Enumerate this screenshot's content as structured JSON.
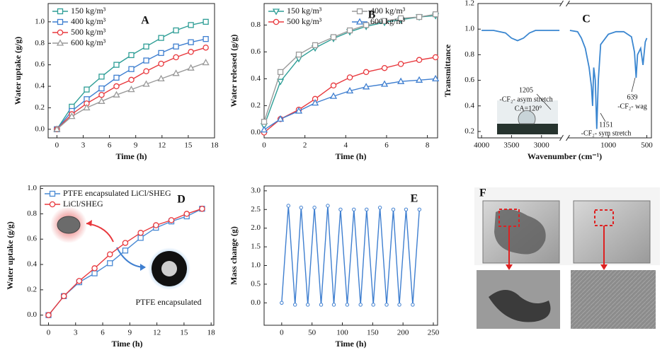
{
  "chart_data": [
    {
      "type": "line",
      "panel_label": "A",
      "x_label": "Time (h)",
      "y_label": "Water uptake (g/g)",
      "xlim": [
        -1,
        18
      ],
      "xticks": [
        0,
        3,
        6,
        9,
        12,
        15,
        18
      ],
      "ylim": [
        -0.08,
        1.17
      ],
      "yticks": [
        {
          "value": 0,
          "label": "0.0"
        },
        0.2,
        0.4,
        0.6,
        0.8,
        {
          "value": 1,
          "label": "1.0"
        }
      ],
      "legend": "upper left",
      "series": [
        {
          "name": "150 kg/m³",
          "color": "#2e9e96",
          "marker": "square",
          "x": [
            0,
            1.7,
            3.4,
            5.1,
            6.8,
            8.5,
            10.2,
            11.9,
            13.6,
            15.3,
            17
          ],
          "values": [
            0,
            0.21,
            0.37,
            0.49,
            0.6,
            0.69,
            0.77,
            0.85,
            0.92,
            0.97,
            1.0
          ]
        },
        {
          "name": "400 kg/m³",
          "color": "#3f7fd0",
          "marker": "square",
          "x": [
            0,
            1.7,
            3.4,
            5.1,
            6.8,
            8.5,
            10.2,
            11.9,
            13.6,
            15.3,
            17
          ],
          "values": [
            0,
            0.17,
            0.28,
            0.38,
            0.48,
            0.56,
            0.64,
            0.71,
            0.77,
            0.81,
            0.84
          ]
        },
        {
          "name": "500 kg/m³",
          "color": "#e8383d",
          "marker": "circle",
          "x": [
            0,
            1.7,
            3.4,
            5.1,
            6.8,
            8.5,
            10.2,
            11.9,
            13.6,
            15.3,
            17
          ],
          "values": [
            0,
            0.14,
            0.24,
            0.32,
            0.4,
            0.46,
            0.54,
            0.61,
            0.67,
            0.72,
            0.76
          ]
        },
        {
          "name": "600 kg/m³",
          "color": "#9a9a9a",
          "marker": "triangle",
          "x": [
            0,
            1.7,
            3.4,
            5.1,
            6.8,
            8.5,
            10.2,
            11.9,
            13.6,
            15.3,
            17
          ],
          "values": [
            0,
            0.12,
            0.2,
            0.26,
            0.32,
            0.37,
            0.42,
            0.47,
            0.52,
            0.57,
            0.62
          ]
        }
      ]
    },
    {
      "type": "line",
      "panel_label": "B",
      "x_label": "Time (h)",
      "y_label": "Water released (g/g)",
      "xlim": [
        0,
        8.5
      ],
      "xticks": [
        0,
        2,
        4,
        6,
        8
      ],
      "ylim": [
        -0.04,
        0.96
      ],
      "yticks": [
        {
          "value": 0,
          "label": "0.0"
        },
        0.2,
        0.4,
        0.6,
        0.8
      ],
      "legend": "upper left",
      "legend_columns": 2,
      "series": [
        {
          "name": "150 kg/m³",
          "color": "#2e9e96",
          "marker": "triangle-down",
          "x": [
            0,
            0.8,
            1.7,
            2.5,
            3.4,
            4.2,
            5.0,
            5.9,
            6.7,
            7.6,
            8.4
          ],
          "values": [
            0.05,
            0.38,
            0.55,
            0.63,
            0.7,
            0.75,
            0.79,
            0.82,
            0.84,
            0.86,
            0.87
          ]
        },
        {
          "name": "400 kg/m³",
          "color": "#9a9a9a",
          "marker": "square",
          "x": [
            0,
            0.8,
            1.7,
            2.5,
            3.4,
            4.2,
            5.0,
            5.9,
            6.7,
            7.6,
            8.4
          ],
          "values": [
            0.08,
            0.45,
            0.58,
            0.65,
            0.71,
            0.76,
            0.8,
            0.83,
            0.85,
            0.86,
            0.88
          ]
        },
        {
          "name": "500 kg/m³",
          "color": "#e8383d",
          "marker": "circle",
          "x": [
            0,
            0.8,
            1.7,
            2.5,
            3.4,
            4.2,
            5.0,
            5.9,
            6.7,
            7.6,
            8.4
          ],
          "values": [
            0,
            0.1,
            0.17,
            0.25,
            0.35,
            0.41,
            0.45,
            0.48,
            0.51,
            0.54,
            0.56
          ]
        },
        {
          "name": "600 kg/m³",
          "color": "#3f7fd0",
          "marker": "triangle",
          "x": [
            0,
            0.8,
            1.7,
            2.5,
            3.4,
            4.2,
            5.0,
            5.9,
            6.7,
            7.6,
            8.4
          ],
          "values": [
            0.02,
            0.1,
            0.16,
            0.22,
            0.27,
            0.31,
            0.34,
            0.36,
            0.38,
            0.39,
            0.4
          ]
        }
      ]
    },
    {
      "type": "line",
      "panel_label": "C",
      "x_label": "Wavenumber (cm⁻¹)",
      "y_label": "Transmittance",
      "xlim": [
        4060,
        440
      ],
      "xbreak": [
        2700,
        1500
      ],
      "xticks": [
        4000,
        3500,
        3000,
        1000,
        500
      ],
      "ylim": [
        0.15,
        1.2
      ],
      "yticks": [
        0.2,
        0.4,
        0.6,
        0.8,
        {
          "value": 1,
          "label": "1.0"
        },
        1.2
      ],
      "annotations": [
        "1205",
        "-CF₂- asym stretch",
        "1151",
        "-CF₂- sym stretch",
        "639",
        "-CF₂- wag",
        "CA=120°"
      ],
      "series": [
        {
          "color": "#3a86d0",
          "x": [
            4000,
            3800,
            3600,
            3500,
            3400,
            3300,
            3200,
            3100,
            2900,
            2700,
            2000,
            1500,
            1400,
            1350,
            1300,
            1250,
            1220,
            1205,
            1190,
            1170,
            1151,
            1130,
            1100,
            1000,
            900,
            800,
            700,
            660,
            639,
            620,
            580,
            550,
            520,
            500
          ],
          "values": [
            0.99,
            0.99,
            0.97,
            0.93,
            0.91,
            0.93,
            0.97,
            0.99,
            0.99,
            0.99,
            null,
            0.99,
            0.98,
            0.93,
            0.85,
            0.7,
            0.55,
            0.4,
            0.7,
            0.6,
            0.22,
            0.6,
            0.88,
            0.96,
            0.98,
            0.98,
            0.94,
            0.82,
            0.62,
            0.8,
            0.85,
            0.72,
            0.9,
            0.93
          ]
        }
      ]
    },
    {
      "type": "line",
      "panel_label": "D",
      "x_label": "Time (h)",
      "y_label": "Water uptake (g/g)",
      "xlim": [
        -0.9,
        18.3
      ],
      "xticks": [
        0,
        3,
        6,
        9,
        12,
        15,
        18
      ],
      "ylim": [
        -0.08,
        1.02
      ],
      "yticks": [
        {
          "value": 0,
          "label": "0.0"
        },
        0.2,
        0.4,
        0.6,
        0.8,
        {
          "value": 1,
          "label": "1.0"
        }
      ],
      "legend": "upper left",
      "annotations": [
        "PTFE encapsulated"
      ],
      "series": [
        {
          "name": "PTFE encapsulated LiCl/SHEG",
          "color": "#4a8ad4",
          "marker": "square",
          "x": [
            0,
            1.7,
            3.4,
            5.1,
            6.8,
            8.5,
            10.2,
            11.9,
            13.6,
            15.3,
            17
          ],
          "values": [
            0,
            0.15,
            0.26,
            0.33,
            0.41,
            0.51,
            0.61,
            0.69,
            0.74,
            0.78,
            0.84
          ]
        },
        {
          "name": "LiCl/SHEG",
          "color": "#e8383d",
          "marker": "circle",
          "x": [
            0,
            1.7,
            3.4,
            5.1,
            6.8,
            8.5,
            10.2,
            11.9,
            13.6,
            15.3,
            17
          ],
          "values": [
            0,
            0.15,
            0.27,
            0.37,
            0.48,
            0.57,
            0.65,
            0.71,
            0.75,
            0.8,
            0.84
          ]
        }
      ]
    },
    {
      "type": "line",
      "panel_label": "E",
      "x_label": "Time (h)",
      "y_label": "Mass change (g)",
      "xlim": [
        -29,
        257
      ],
      "xticks": [
        0,
        50,
        100,
        150,
        200,
        250
      ],
      "ylim": [
        -0.6,
        3.13
      ],
      "yticks": [
        {
          "value": 0,
          "label": "0.0"
        },
        0.5,
        {
          "value": 1,
          "label": "1.0"
        },
        1.5,
        {
          "value": 2,
          "label": "2.0"
        },
        2.5,
        {
          "value": 3,
          "label": "3.0"
        }
      ],
      "series": [
        {
          "color": "#3f7fd0",
          "marker": "small-circle",
          "x": [
            0,
            11,
            22,
            32,
            43,
            54,
            65,
            76,
            86,
            97,
            108,
            119,
            130,
            140,
            151,
            162,
            173,
            184,
            194,
            205,
            216,
            227
          ],
          "values": [
            0,
            2.6,
            -0.05,
            2.55,
            -0.05,
            2.55,
            -0.05,
            2.6,
            -0.05,
            2.5,
            -0.05,
            2.5,
            -0.05,
            2.5,
            -0.05,
            2.55,
            -0.05,
            2.5,
            -0.05,
            2.5,
            -0.05,
            2.5
          ]
        }
      ]
    }
  ],
  "panel_f": {
    "label": "F"
  }
}
